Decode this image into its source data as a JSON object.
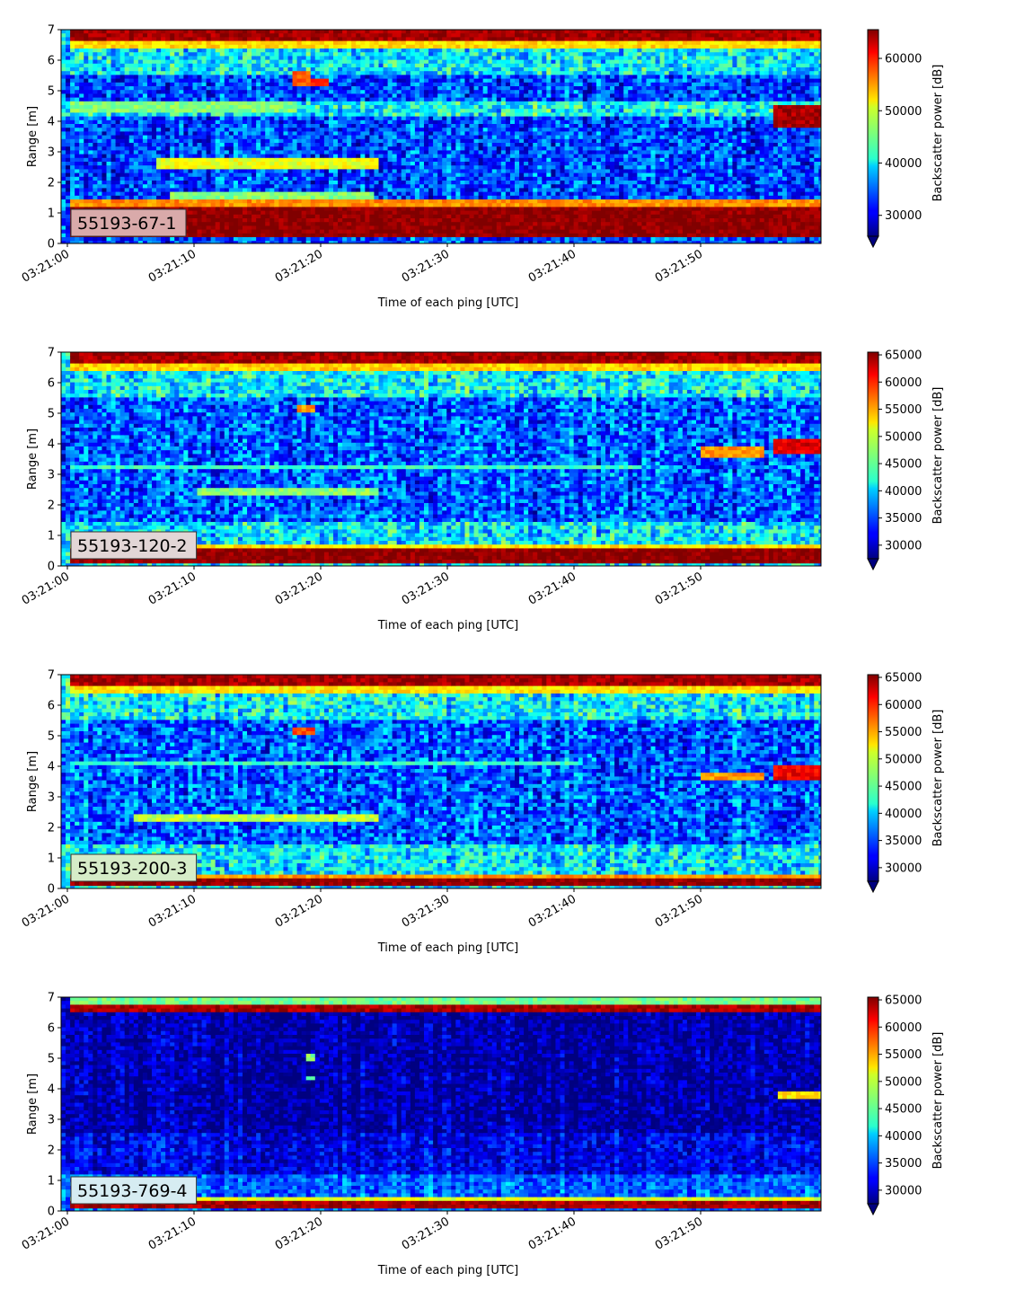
{
  "figure": {
    "xlabel": "Time of each ping [UTC]",
    "ylabel": "Range [m]",
    "colorbar_label": "Backscatter power [dB]"
  },
  "chart_data": [
    {
      "type": "heatmap",
      "panel_label": "55193-67-1",
      "label_box_color": "#d9aaaa",
      "xlabel": "Time of each ping [UTC]",
      "ylabel": "Range [m]",
      "x_ticks": [
        "03:21:00",
        "03:21:10",
        "03:21:20",
        "03:21:30",
        "03:21:40",
        "03:21:50"
      ],
      "x_range_seconds": [
        0,
        59.5
      ],
      "y_ticks": [
        0,
        1,
        2,
        3,
        4,
        5,
        6,
        7
      ],
      "ylim": [
        0,
        7
      ],
      "colorbar": {
        "label": "Backscatter power [dB]",
        "ticks": [
          30000,
          40000,
          50000,
          60000
        ],
        "range": [
          26000,
          65500
        ],
        "colormap": "jet",
        "extend": "min"
      },
      "features": [
        {
          "from_s": 0,
          "to_s": 60,
          "y0": 0.2,
          "y1": 1.2,
          "value": 65000
        },
        {
          "from_s": 0,
          "to_s": 60,
          "y0": 1.2,
          "y1": 1.4,
          "value": 55000
        },
        {
          "from_s": 0,
          "to_s": 60,
          "y0": 6.6,
          "y1": 7.0,
          "value": 64000
        },
        {
          "from_s": 0,
          "to_s": 60,
          "y0": 6.35,
          "y1": 6.6,
          "value": 52000
        },
        {
          "from_s": 0,
          "to_s": 18,
          "y0": 4.25,
          "y1": 4.6,
          "value": 46000
        },
        {
          "from_s": 7,
          "to_s": 24.5,
          "y0": 2.45,
          "y1": 2.8,
          "value": 50000
        },
        {
          "from_s": 8,
          "to_s": 24,
          "y0": 1.45,
          "y1": 1.75,
          "value": 46000
        },
        {
          "from_s": 17.5,
          "to_s": 19,
          "y0": 5.2,
          "y1": 5.6,
          "value": 57000
        },
        {
          "from_s": 19,
          "to_s": 20.5,
          "y0": 5.1,
          "y1": 5.4,
          "value": 60000
        },
        {
          "from_s": 55.5,
          "to_s": 59.5,
          "y0": 3.8,
          "y1": 4.5,
          "value": 64000
        }
      ]
    },
    {
      "type": "heatmap",
      "panel_label": "55193-120-2",
      "label_box_color": "#e2d6d6",
      "xlabel": "Time of each ping [UTC]",
      "ylabel": "Range [m]",
      "x_ticks": [
        "03:21:00",
        "03:21:10",
        "03:21:20",
        "03:21:30",
        "03:21:40",
        "03:21:50"
      ],
      "x_range_seconds": [
        0,
        59.5
      ],
      "y_ticks": [
        0,
        1,
        2,
        3,
        4,
        5,
        6,
        7
      ],
      "ylim": [
        0,
        7
      ],
      "colorbar": {
        "label": "Backscatter power [dB]",
        "ticks": [
          30000,
          35000,
          40000,
          45000,
          50000,
          55000,
          60000,
          65000
        ],
        "range": [
          27500,
          65500
        ],
        "colormap": "jet",
        "extend": "min"
      },
      "features": [
        {
          "from_s": 0,
          "to_s": 60,
          "y0": 0.1,
          "y1": 0.55,
          "value": 65000
        },
        {
          "from_s": 0,
          "to_s": 60,
          "y0": 0.55,
          "y1": 0.75,
          "value": 52000
        },
        {
          "from_s": 0,
          "to_s": 60,
          "y0": 6.6,
          "y1": 7.0,
          "value": 64000
        },
        {
          "from_s": 0,
          "to_s": 60,
          "y0": 6.35,
          "y1": 6.6,
          "value": 53000
        },
        {
          "from_s": 10,
          "to_s": 24.5,
          "y0": 2.25,
          "y1": 2.5,
          "value": 47000
        },
        {
          "from_s": 0,
          "to_s": 45,
          "y0": 3.15,
          "y1": 3.35,
          "value": 44000
        },
        {
          "from_s": 18,
          "to_s": 19.5,
          "y0": 5.0,
          "y1": 5.3,
          "value": 55000
        },
        {
          "from_s": 50,
          "to_s": 55,
          "y0": 3.6,
          "y1": 3.9,
          "value": 55000
        },
        {
          "from_s": 55.5,
          "to_s": 59.5,
          "y0": 3.7,
          "y1": 4.1,
          "value": 62000
        }
      ]
    },
    {
      "type": "heatmap",
      "panel_label": "55193-200-3",
      "label_box_color": "#d6ecc8",
      "xlabel": "Time of each ping [UTC]",
      "ylabel": "Range [m]",
      "x_ticks": [
        "03:21:00",
        "03:21:10",
        "03:21:20",
        "03:21:30",
        "03:21:40",
        "03:21:50"
      ],
      "x_range_seconds": [
        0,
        59.5
      ],
      "y_ticks": [
        0,
        1,
        2,
        3,
        4,
        5,
        6,
        7
      ],
      "ylim": [
        0,
        7
      ],
      "colorbar": {
        "label": "Backscatter power [dB]",
        "ticks": [
          30000,
          35000,
          40000,
          45000,
          50000,
          55000,
          60000,
          65000
        ],
        "range": [
          27500,
          65500
        ],
        "colormap": "jet",
        "extend": "min"
      },
      "features": [
        {
          "from_s": 0,
          "to_s": 60,
          "y0": 0.1,
          "y1": 0.3,
          "value": 65000
        },
        {
          "from_s": 0,
          "to_s": 60,
          "y0": 0.3,
          "y1": 0.5,
          "value": 55000
        },
        {
          "from_s": 0,
          "to_s": 60,
          "y0": 6.65,
          "y1": 7.0,
          "value": 64000
        },
        {
          "from_s": 0,
          "to_s": 60,
          "y0": 6.35,
          "y1": 6.65,
          "value": 52000
        },
        {
          "from_s": 5,
          "to_s": 24.5,
          "y0": 2.2,
          "y1": 2.45,
          "value": 49000
        },
        {
          "from_s": 0,
          "to_s": 40,
          "y0": 4.0,
          "y1": 4.2,
          "value": 44000
        },
        {
          "from_s": 17.5,
          "to_s": 19.5,
          "y0": 5.0,
          "y1": 5.3,
          "value": 58000
        },
        {
          "from_s": 50,
          "to_s": 55,
          "y0": 3.5,
          "y1": 3.8,
          "value": 55000
        },
        {
          "from_s": 55.5,
          "to_s": 59.5,
          "y0": 3.6,
          "y1": 4.0,
          "value": 61000
        }
      ]
    },
    {
      "type": "heatmap",
      "panel_label": "55193-769-4",
      "label_box_color": "#d6ecf2",
      "xlabel": "Time of each ping [UTC]",
      "ylabel": "Range [m]",
      "x_ticks": [
        "03:21:00",
        "03:21:10",
        "03:21:20",
        "03:21:30",
        "03:21:40",
        "03:21:50"
      ],
      "x_range_seconds": [
        0,
        59.5
      ],
      "y_ticks": [
        0,
        1,
        2,
        3,
        4,
        5,
        6,
        7
      ],
      "ylim": [
        0,
        7
      ],
      "colorbar": {
        "label": "Backscatter power [dB]",
        "ticks": [
          30000,
          35000,
          40000,
          45000,
          50000,
          55000,
          60000,
          65000
        ],
        "range": [
          27500,
          65500
        ],
        "colormap": "jet",
        "extend": "min"
      },
      "features": [
        {
          "from_s": 0,
          "to_s": 60,
          "y0": 0.1,
          "y1": 0.3,
          "value": 64000
        },
        {
          "from_s": 0,
          "to_s": 60,
          "y0": 0.3,
          "y1": 0.45,
          "value": 50000
        },
        {
          "from_s": 0,
          "to_s": 60,
          "y0": 6.5,
          "y1": 6.75,
          "value": 64000
        },
        {
          "from_s": 0,
          "to_s": 60,
          "y0": 6.75,
          "y1": 7.0,
          "value": 46000
        },
        {
          "from_s": 18.5,
          "to_s": 19.5,
          "y0": 4.9,
          "y1": 5.1,
          "value": 47000
        },
        {
          "from_s": 18.5,
          "to_s": 19.5,
          "y0": 4.3,
          "y1": 4.45,
          "value": 44000
        },
        {
          "from_s": 56,
          "to_s": 59.5,
          "y0": 3.7,
          "y1": 3.95,
          "value": 52000
        }
      ]
    }
  ]
}
